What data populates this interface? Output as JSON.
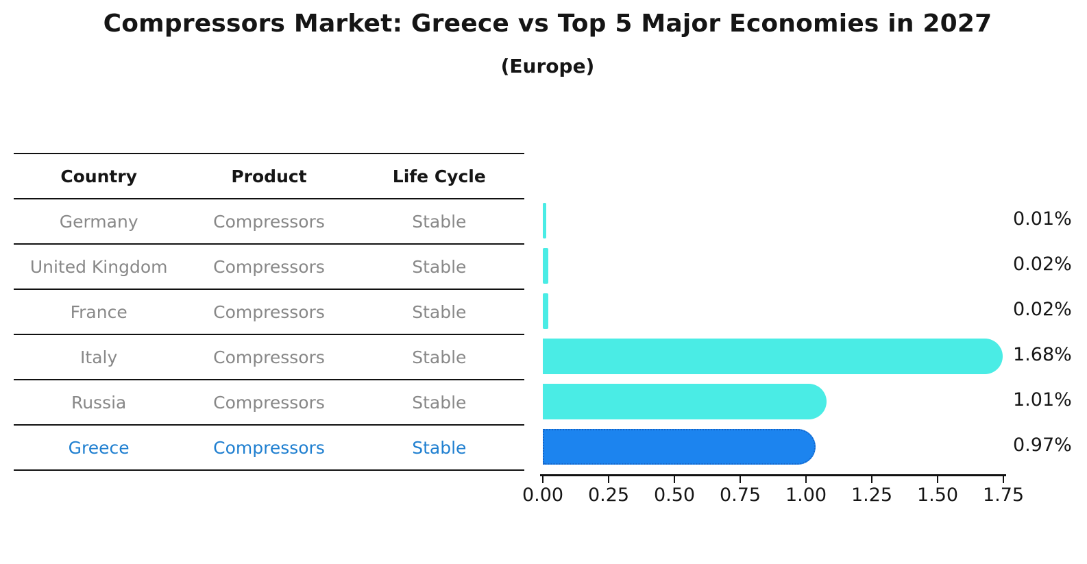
{
  "chart_data": {
    "type": "bar",
    "orientation": "horizontal",
    "title": "Compressors Market: Greece vs Top 5 Major Economies in 2027",
    "subtitle": "(Europe)",
    "categories": [
      "Germany",
      "United Kingdom",
      "France",
      "Italy",
      "Russia",
      "Greece"
    ],
    "values": [
      0.01,
      0.02,
      0.02,
      1.68,
      1.01,
      0.97
    ],
    "value_labels": [
      "0.01%",
      "0.02%",
      "0.02%",
      "1.68%",
      "1.01%",
      "0.97%"
    ],
    "x_ticks": [
      "0.00",
      "0.25",
      "0.50",
      "0.75",
      "1.00",
      "1.25",
      "1.50",
      "1.75"
    ],
    "xlim": [
      0,
      1.75
    ],
    "grid": false,
    "legend": "none",
    "highlight_index": 5,
    "colors": {
      "bar": "#4AECE5",
      "highlight": "#1C84EF",
      "highlight_border": "#1565C8"
    }
  },
  "table": {
    "headers": [
      "Country",
      "Product",
      "Life Cycle"
    ],
    "rows": [
      {
        "country": "Germany",
        "product": "Compressors",
        "life_cycle": "Stable",
        "highlighted": false
      },
      {
        "country": "United Kingdom",
        "product": "Compressors",
        "life_cycle": "Stable",
        "highlighted": false
      },
      {
        "country": "France",
        "product": "Compressors",
        "life_cycle": "Stable",
        "highlighted": false
      },
      {
        "country": "Italy",
        "product": "Compressors",
        "life_cycle": "Stable",
        "highlighted": false
      },
      {
        "country": "Russia",
        "product": "Compressors",
        "life_cycle": "Stable",
        "highlighted": false
      },
      {
        "country": "Greece",
        "product": "Compressors",
        "life_cycle": "Stable",
        "highlighted": true
      }
    ]
  },
  "colors": {
    "text_dark": "#151515",
    "text_gray": "#888888",
    "highlight_text": "#1F7FD0",
    "background": "#FFFFFF"
  }
}
